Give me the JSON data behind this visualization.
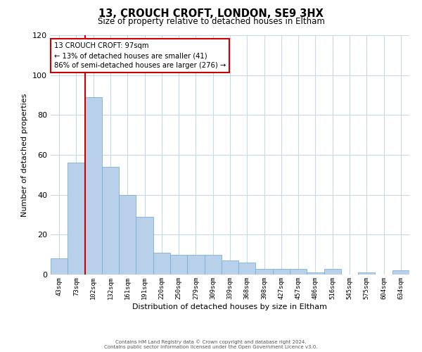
{
  "title": "13, CROUCH CROFT, LONDON, SE9 3HX",
  "subtitle": "Size of property relative to detached houses in Eltham",
  "xlabel": "Distribution of detached houses by size in Eltham",
  "ylabel": "Number of detached properties",
  "bar_labels": [
    "43sqm",
    "73sqm",
    "102sqm",
    "132sqm",
    "161sqm",
    "191sqm",
    "220sqm",
    "250sqm",
    "279sqm",
    "309sqm",
    "339sqm",
    "368sqm",
    "398sqm",
    "427sqm",
    "457sqm",
    "486sqm",
    "516sqm",
    "545sqm",
    "575sqm",
    "604sqm",
    "634sqm"
  ],
  "bar_values": [
    8,
    56,
    89,
    54,
    40,
    29,
    11,
    10,
    10,
    10,
    7,
    6,
    3,
    3,
    3,
    1,
    3,
    0,
    1,
    0,
    2
  ],
  "bar_color": "#b8d0ea",
  "bar_edgecolor": "#7aafd4",
  "vline_color": "#cc0000",
  "ylim": [
    0,
    120
  ],
  "yticks": [
    0,
    20,
    40,
    60,
    80,
    100,
    120
  ],
  "annotation_title": "13 CROUCH CROFT: 97sqm",
  "annotation_line1": "← 13% of detached houses are smaller (41)",
  "annotation_line2": "86% of semi-detached houses are larger (276) →",
  "annotation_box_facecolor": "#ffffff",
  "annotation_box_edgecolor": "#cc0000",
  "footer_line1": "Contains HM Land Registry data © Crown copyright and database right 2024.",
  "footer_line2": "Contains public sector information licensed under the Open Government Licence v3.0.",
  "background_color": "#ffffff",
  "grid_color": "#c8d8e8",
  "title_fontsize": 10.5,
  "subtitle_fontsize": 8.5
}
